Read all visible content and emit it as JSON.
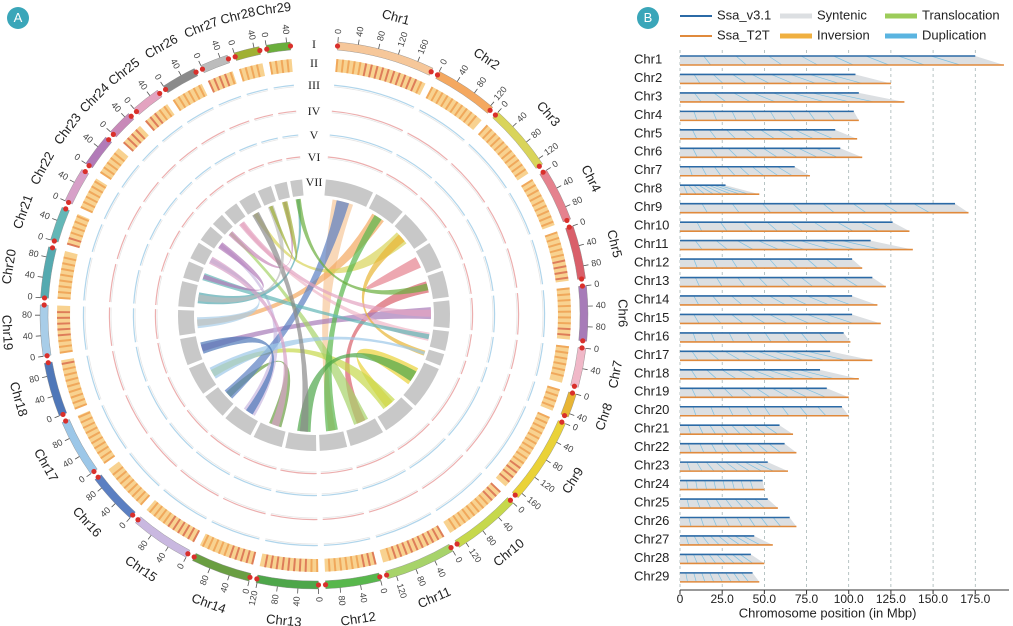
{
  "panel_labels": [
    "A",
    "B"
  ],
  "chart_data": [
    {
      "type": "circos",
      "categories": [
        "Chr1",
        "Chr2",
        "Chr3",
        "Chr4",
        "Chr5",
        "Chr6",
        "Chr7",
        "Chr8",
        "Chr9",
        "Chr10",
        "Chr11",
        "Chr12",
        "Chr13",
        "Chr14",
        "Chr15",
        "Chr16",
        "Chr17",
        "Chr18",
        "Chr19",
        "Chr20",
        "Chr21",
        "Chr22",
        "Chr23",
        "Chr24",
        "Chr25",
        "Chr26",
        "Chr27",
        "Chr28",
        "Chr29"
      ],
      "values": [
        192,
        125,
        133,
        106,
        105,
        108,
        77,
        47,
        171,
        136,
        138,
        108,
        122,
        117,
        119,
        101,
        114,
        106,
        100,
        100,
        67,
        69,
        64,
        50,
        58,
        69,
        55,
        50,
        47
      ],
      "colors": [
        "#f6c79a",
        "#f4a860",
        "#d9d45a",
        "#e5828e",
        "#d95f6a",
        "#a77bb8",
        "#f0b8c8",
        "#e8b535",
        "#ead238",
        "#c6d84c",
        "#a7d36a",
        "#58b74c",
        "#4ea64a",
        "#6a9e42",
        "#c9b8e0",
        "#5b7fc2",
        "#9cc7e8",
        "#4f77b8",
        "#a8cde8",
        "#55aab0",
        "#63b7b7",
        "#d7a0c8",
        "#b27bb8",
        "#c889b8",
        "#e3a3c0",
        "#8a8a8a",
        "#bcbcbc",
        "#a0b034",
        "#6aae3c"
      ],
      "ticks": [
        0,
        40,
        80,
        120,
        160
      ],
      "ring_labels": [
        "I",
        "II",
        "III",
        "IV",
        "V",
        "VI",
        "VII"
      ]
    },
    {
      "type": "synteny",
      "categories": [
        "Chr1",
        "Chr2",
        "Chr3",
        "Chr4",
        "Chr5",
        "Chr6",
        "Chr7",
        "Chr8",
        "Chr9",
        "Chr10",
        "Chr11",
        "Chr12",
        "Chr13",
        "Chr14",
        "Chr15",
        "Chr16",
        "Chr17",
        "Chr18",
        "Chr19",
        "Chr20",
        "Chr21",
        "Chr22",
        "Chr23",
        "Chr24",
        "Chr25",
        "Chr26",
        "Chr27",
        "Chr28",
        "Chr29"
      ],
      "series": [
        {
          "name": "Ssa_v3.1",
          "color": "#2b6aa6",
          "values": [
            175,
            104,
            106,
            103,
            92,
            95,
            68,
            27,
            163,
            126,
            113,
            102,
            114,
            102,
            102,
            97,
            89,
            83,
            87,
            96,
            59,
            62,
            52,
            49,
            52,
            65,
            44,
            42,
            43
          ]
        },
        {
          "name": "Ssa_T2T",
          "color": "#e08a3c",
          "values": [
            192,
            125,
            133,
            106,
            105,
            108,
            77,
            47,
            171,
            136,
            138,
            108,
            122,
            117,
            119,
            101,
            114,
            106,
            100,
            100,
            67,
            69,
            64,
            50,
            58,
            69,
            55,
            50,
            47
          ]
        }
      ],
      "link_types": [
        {
          "name": "Syntenic",
          "color": "#dcdfe2"
        },
        {
          "name": "Inversion",
          "color": "#f0b040"
        },
        {
          "name": "Translocation",
          "color": "#9ccc5a"
        },
        {
          "name": "Duplication",
          "color": "#5ab4e0"
        }
      ],
      "xlim": [
        0,
        195
      ],
      "xticks": [
        0,
        {
          "value": 25,
          "label": "25.0"
        },
        {
          "value": 50,
          "label": "50.0"
        },
        {
          "value": 75,
          "label": "75.0"
        },
        {
          "value": 100,
          "label": "100.0"
        },
        {
          "value": 125,
          "label": "125.0"
        },
        {
          "value": 150,
          "label": "150.0"
        },
        {
          "value": 175,
          "label": "175.0"
        }
      ],
      "xlabel": "Chromosome position (in Mbp)",
      "grid": true
    }
  ]
}
